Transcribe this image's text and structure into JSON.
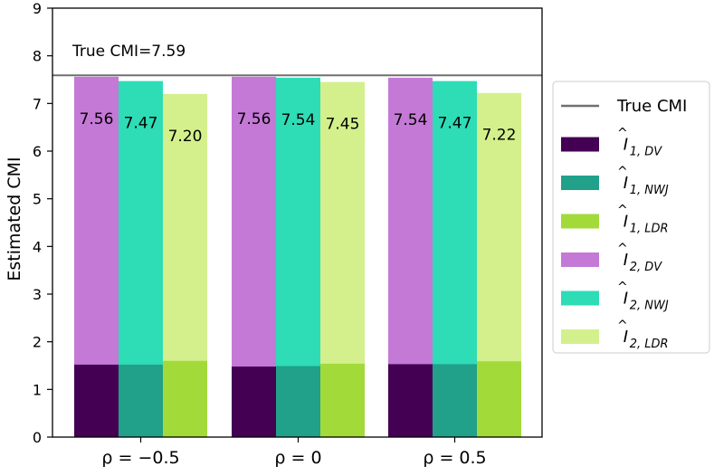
{
  "chart_data": {
    "type": "bar",
    "ylabel": "Estimated CMI",
    "ylim": [
      0,
      9
    ],
    "yticks": [
      "0",
      "1",
      "2",
      "3",
      "4",
      "5",
      "6",
      "7",
      "8",
      "9"
    ],
    "categories": [
      "ρ = −0.5",
      "ρ = 0",
      "ρ = 0.5"
    ],
    "true_cmi": {
      "value": 7.59,
      "label": "True CMI=7.59",
      "color": "#707070"
    },
    "series_stage1": [
      {
        "name": "DV",
        "legend": "Î₁,DV",
        "color": "#440154",
        "values": [
          1.52,
          1.48,
          1.53
        ]
      },
      {
        "name": "NWJ",
        "legend": "Î₁,NWJ",
        "color": "#21a08a",
        "values": [
          1.52,
          1.49,
          1.53
        ]
      },
      {
        "name": "LDR",
        "legend": "Î₁,LDR",
        "color": "#a2da3a",
        "values": [
          1.6,
          1.54,
          1.59
        ]
      }
    ],
    "series_stage2": [
      {
        "name": "DV",
        "legend": "Î₂,DV",
        "color": "#c479d6",
        "values": [
          7.56,
          7.56,
          7.54
        ],
        "labels": [
          "7.56",
          "7.56",
          "7.54"
        ]
      },
      {
        "name": "NWJ",
        "legend": "Î₂,NWJ",
        "color": "#2edcb6",
        "values": [
          7.47,
          7.54,
          7.47
        ],
        "labels": [
          "7.47",
          "7.54",
          "7.47"
        ]
      },
      {
        "name": "LDR",
        "legend": "Î₂,LDR",
        "color": "#d3f08c",
        "values": [
          7.2,
          7.45,
          7.22
        ],
        "labels": [
          "7.20",
          "7.45",
          "7.22"
        ]
      }
    ],
    "legend": {
      "position": "right",
      "items": [
        {
          "kind": "line",
          "label": "True CMI",
          "color": "#707070"
        },
        {
          "kind": "patch",
          "base": "I",
          "sub": "1, DV",
          "color": "#440154"
        },
        {
          "kind": "patch",
          "base": "I",
          "sub": "1, NWJ",
          "color": "#21a08a"
        },
        {
          "kind": "patch",
          "base": "I",
          "sub": "1, LDR",
          "color": "#a2da3a"
        },
        {
          "kind": "patch",
          "base": "I",
          "sub": "2, DV",
          "color": "#c479d6"
        },
        {
          "kind": "patch",
          "base": "I",
          "sub": "2, NWJ",
          "color": "#2edcb6"
        },
        {
          "kind": "patch",
          "base": "I",
          "sub": "2, LDR",
          "color": "#d3f08c"
        }
      ]
    }
  }
}
